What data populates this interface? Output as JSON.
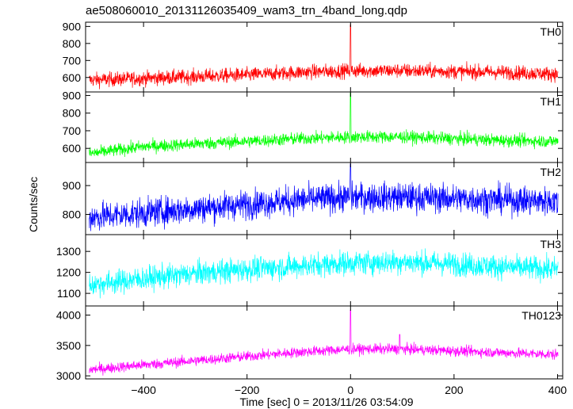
{
  "title": "ae508060010_20131126035409_wam3_trn_4band_long.qdp",
  "xlabel": "Time [sec] 0 = 2013/11/26 03:54:09",
  "ylabel": "Counts/sec",
  "chart_data": {
    "type": "line",
    "title": "ae508060010_20131126035409_wam3_trn_4band_long.qdp",
    "xlabel": "Time [sec] 0 = 2013/11/26 03:54:09",
    "ylabel": "Counts/sec",
    "xlim": [
      -512,
      410
    ],
    "xticks": [
      -400,
      -200,
      0,
      200,
      400
    ],
    "xtick_labels": [
      "−400",
      "−200",
      "0",
      "200",
      "400"
    ],
    "grid": false,
    "panels": [
      {
        "name": "TH0",
        "color": "#ff0000",
        "ylim": [
          515,
          925
        ],
        "yticks": [
          600,
          700,
          800,
          900
        ],
        "x": [
          -505,
          -400,
          -300,
          -200,
          -100,
          0,
          100,
          200,
          300,
          400
        ],
        "mean": [
          585,
          595,
          605,
          615,
          630,
          640,
          640,
          635,
          630,
          620
        ],
        "noise": 30,
        "events": [
          {
            "x": 0,
            "y": 910
          }
        ]
      },
      {
        "name": "TH1",
        "color": "#00ff00",
        "ylim": [
          520,
          920
        ],
        "yticks": [
          600,
          700,
          800,
          900
        ],
        "x": [
          -505,
          -400,
          -300,
          -200,
          -100,
          0,
          100,
          200,
          300,
          400
        ],
        "mean": [
          570,
          610,
          625,
          640,
          655,
          665,
          665,
          655,
          645,
          640
        ],
        "noise": 25,
        "events": [
          {
            "x": 0,
            "y": 915
          }
        ]
      },
      {
        "name": "TH2",
        "color": "#0000ff",
        "ylim": [
          730,
          980
        ],
        "yticks": [
          800,
          900
        ],
        "x": [
          -505,
          -400,
          -300,
          -200,
          -100,
          0,
          100,
          200,
          300,
          400
        ],
        "mean": [
          790,
          805,
          820,
          835,
          850,
          860,
          860,
          855,
          850,
          845
        ],
        "noise": 35,
        "events": [
          {
            "x": 0,
            "y": 975
          }
        ]
      },
      {
        "name": "TH3",
        "color": "#00ffff",
        "ylim": [
          1040,
          1380
        ],
        "yticks": [
          1100,
          1200,
          1300
        ],
        "x": [
          -505,
          -400,
          -300,
          -200,
          -100,
          0,
          100,
          200,
          300,
          400
        ],
        "mean": [
          1140,
          1170,
          1195,
          1215,
          1230,
          1245,
          1250,
          1240,
          1225,
          1215
        ],
        "noise": 40,
        "events": []
      },
      {
        "name": "TH0123",
        "color": "#ff00ff",
        "ylim": [
          2950,
          4150
        ],
        "yticks": [
          3000,
          3500,
          4000
        ],
        "x": [
          -505,
          -400,
          -300,
          -200,
          -100,
          0,
          100,
          200,
          300,
          400
        ],
        "mean": [
          3100,
          3180,
          3250,
          3320,
          3390,
          3440,
          3440,
          3410,
          3380,
          3350
        ],
        "noise": 60,
        "events": [
          {
            "x": 0,
            "y": 4080
          },
          {
            "x": 95,
            "y": 3680
          }
        ]
      }
    ]
  }
}
